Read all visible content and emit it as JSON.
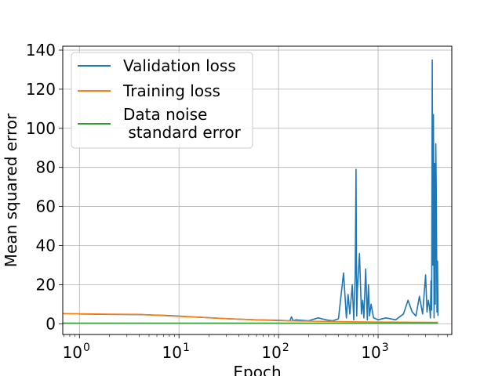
{
  "chart_data": {
    "type": "line",
    "xlabel": "Epoch",
    "ylabel": "Mean squared error",
    "xscale": "log",
    "xlim": [
      0.68,
      5500
    ],
    "ylim": [
      -5.5,
      142
    ],
    "grid": true,
    "legend_position": "top-left",
    "x_ticks": [
      {
        "value": 1,
        "base": "10",
        "exp": "0"
      },
      {
        "value": 10,
        "base": "10",
        "exp": "1"
      },
      {
        "value": 100,
        "base": "10",
        "exp": "2"
      },
      {
        "value": 1000,
        "base": "10",
        "exp": "3"
      }
    ],
    "y_ticks": [
      0,
      20,
      40,
      60,
      80,
      100,
      120,
      140
    ],
    "series": [
      {
        "name": "Validation loss",
        "color": "#1f77b4",
        "x": [
          1,
          2,
          4,
          8,
          15,
          30,
          60,
          100,
          130,
          135,
          140,
          150,
          200,
          250,
          300,
          350,
          400,
          450,
          480,
          500,
          520,
          550,
          570,
          590,
          600,
          610,
          620,
          650,
          680,
          700,
          720,
          750,
          780,
          800,
          820,
          850,
          900,
          950,
          1000,
          1200,
          1500,
          1800,
          2000,
          2200,
          2400,
          2600,
          2800,
          3000,
          3100,
          3200,
          3300,
          3350,
          3400,
          3450,
          3500,
          3550,
          3600,
          3650,
          3700,
          3750,
          3800,
          3850,
          3900,
          3950,
          4000
        ],
        "y": [
          5,
          4.8,
          4.7,
          4.2,
          3.4,
          2.6,
          2.0,
          1.8,
          1.5,
          3.5,
          1.5,
          2.0,
          1.5,
          3.0,
          2.0,
          1.5,
          2.5,
          26,
          3,
          15,
          5,
          20,
          2,
          25,
          79,
          4,
          18,
          36,
          5,
          12,
          3,
          28,
          2,
          20,
          4,
          10,
          3,
          2.5,
          2,
          3,
          2,
          5,
          12,
          6,
          4,
          14,
          5,
          25,
          6,
          12,
          8,
          3,
          22,
          7,
          135,
          30,
          107,
          3,
          82,
          10,
          92,
          64,
          6,
          32,
          4
        ]
      },
      {
        "name": "Training loss",
        "color": "#ff7f0e",
        "x": [
          0.68,
          1,
          2,
          4,
          8,
          15,
          30,
          60,
          100,
          200,
          400,
          800,
          1500,
          2500,
          4000
        ],
        "y": [
          5.2,
          5.1,
          4.9,
          4.8,
          4.0,
          3.4,
          2.6,
          2.0,
          1.6,
          1.3,
          1.1,
          0.9,
          0.8,
          0.75,
          0.7
        ]
      },
      {
        "name": "Data noise\n standard error",
        "color": "#2ca02c",
        "x": [
          0.68,
          4000
        ],
        "y": [
          0.3,
          0.3
        ]
      }
    ]
  }
}
